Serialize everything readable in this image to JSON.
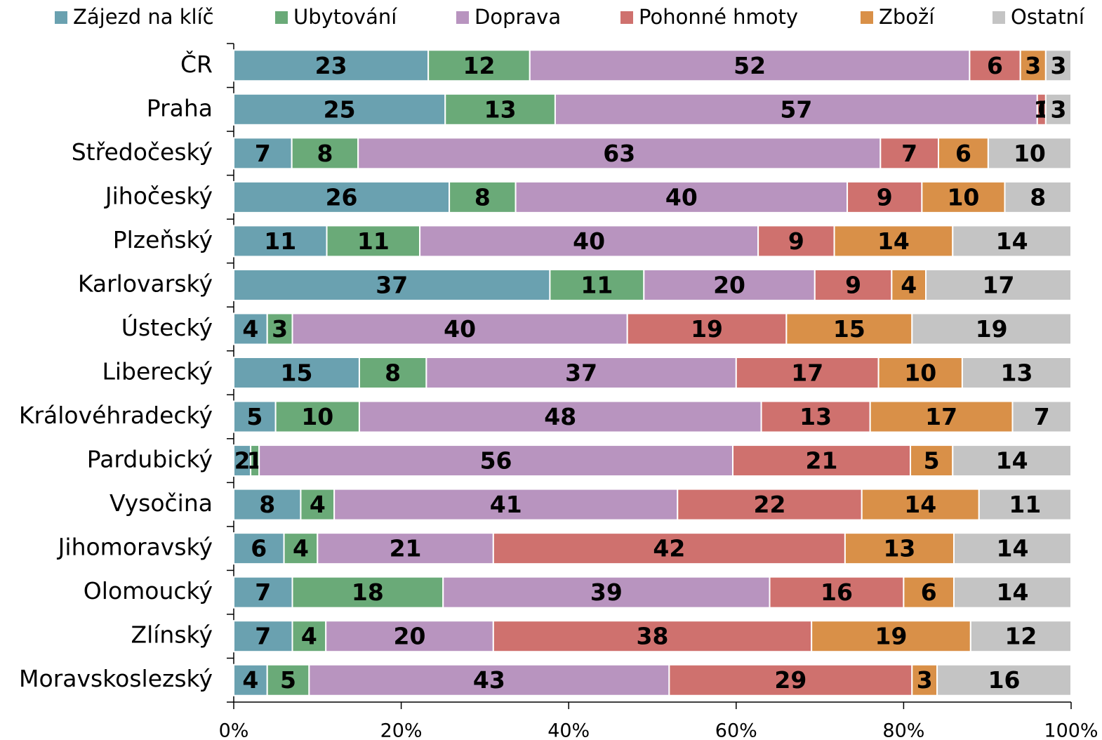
{
  "chart_data": {
    "type": "bar",
    "orientation": "horizontal",
    "stack": "percent",
    "categories": [
      "ČR",
      "Praha",
      "Středočeský",
      "Jihočeský",
      "Plzeňský",
      "Karlovarský",
      "Ústecký",
      "Liberecký",
      "Královéhradecký",
      "Pardubický",
      "Vysočina",
      "Jihomoravský",
      "Olomoucký",
      "Zlínský",
      "Moravskoslezský"
    ],
    "series": [
      {
        "name": "Zájezd na klíč",
        "color": "#6aa1b0",
        "values": [
          23,
          25,
          7,
          26,
          11,
          37,
          4,
          15,
          5,
          2,
          8,
          6,
          7,
          7,
          4
        ]
      },
      {
        "name": "Ubytování",
        "color": "#6aaa78",
        "values": [
          12,
          13,
          8,
          8,
          11,
          11,
          3,
          8,
          10,
          1,
          4,
          4,
          18,
          4,
          5
        ]
      },
      {
        "name": "Doprava",
        "color": "#b894bf",
        "values": [
          52,
          57,
          63,
          40,
          40,
          20,
          40,
          37,
          48,
          56,
          41,
          21,
          39,
          20,
          43
        ]
      },
      {
        "name": "Pohonné hmoty",
        "color": "#cf716e",
        "values": [
          6,
          1,
          7,
          9,
          9,
          9,
          19,
          17,
          13,
          21,
          22,
          42,
          16,
          38,
          29
        ]
      },
      {
        "name": "Zboží",
        "color": "#d99048",
        "values": [
          3,
          0,
          6,
          10,
          14,
          4,
          15,
          10,
          17,
          5,
          14,
          13,
          6,
          19,
          3
        ]
      },
      {
        "name": "Ostatní",
        "color": "#c4c4c4",
        "values": [
          3,
          3,
          10,
          8,
          14,
          17,
          19,
          13,
          7,
          14,
          11,
          14,
          14,
          12,
          16
        ]
      }
    ],
    "xlim": [
      0,
      100
    ],
    "xticks": [
      {
        "value": 0,
        "label": "0%"
      },
      {
        "value": 20,
        "label": "20%"
      },
      {
        "value": 40,
        "label": "40%"
      },
      {
        "value": 60,
        "label": "60%"
      },
      {
        "value": 80,
        "label": "80%"
      },
      {
        "value": 100,
        "label": "100%"
      }
    ],
    "legend": "top"
  }
}
